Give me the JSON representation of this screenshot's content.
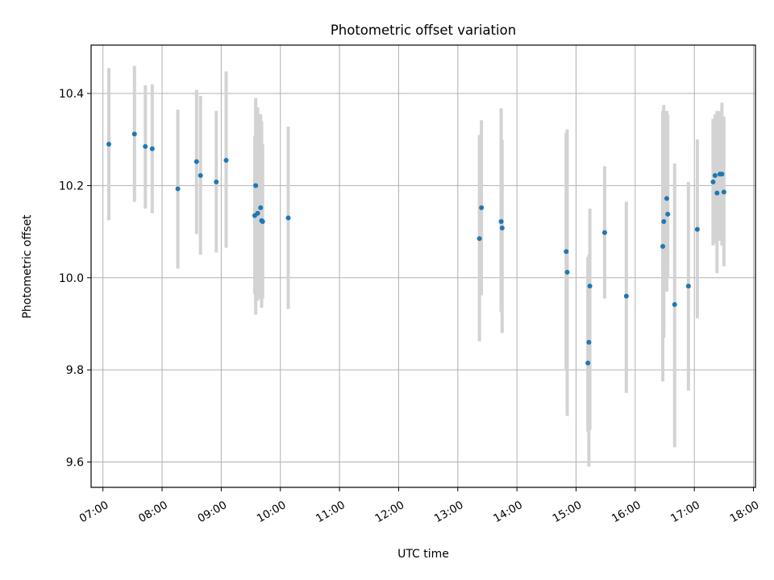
{
  "chart_data": {
    "type": "scatter",
    "title": "Photometric offset variation",
    "xlabel": "UTC time",
    "ylabel": "Photometric offset",
    "x_tick_labels": [
      "07:00",
      "08:00",
      "09:00",
      "10:00",
      "11:00",
      "12:00",
      "13:00",
      "14:00",
      "15:00",
      "16:00",
      "17:00",
      "18:00"
    ],
    "y_ticks": [
      9.6,
      9.8,
      10.0,
      10.2,
      10.4
    ],
    "y_tick_labels": [
      "9.6",
      "9.8",
      "10.0",
      "10.2",
      "10.4"
    ],
    "xlim": [
      "06:48",
      "18:02"
    ],
    "ylim": [
      9.545,
      10.505
    ],
    "grid": true,
    "colors": {
      "point": "#1f77b4",
      "errorbar": "#d3d3d3",
      "grid": "#b0b0b0"
    },
    "series": [
      {
        "x": [
          "07:06",
          "07:32",
          "07:43",
          "07:50",
          "08:16",
          "08:35",
          "08:39",
          "08:55",
          "09:05",
          "09:34",
          "09:35",
          "09:37",
          "09:40",
          "09:41",
          "09:42",
          "10:08",
          "13:22",
          "13:24",
          "13:44",
          "13:45",
          "14:50",
          "14:51",
          "15:12",
          "15:13",
          "15:14",
          "15:29",
          "15:51",
          "16:28",
          "16:29",
          "16:32",
          "16:33",
          "16:40",
          "16:54",
          "17:03",
          "17:19",
          "17:21",
          "17:23",
          "17:26",
          "17:28",
          "17:30"
        ],
        "y": [
          10.29,
          10.312,
          10.285,
          10.28,
          10.193,
          10.252,
          10.222,
          10.208,
          10.255,
          10.135,
          10.2,
          10.14,
          10.152,
          10.124,
          10.122,
          10.13,
          10.085,
          10.152,
          10.122,
          10.108,
          10.057,
          10.012,
          9.815,
          9.86,
          9.982,
          10.098,
          9.96,
          10.068,
          10.122,
          10.172,
          10.138,
          9.942,
          9.982,
          10.105,
          10.208,
          10.222,
          10.184,
          10.225,
          10.225,
          10.186
        ],
        "y_low": [
          10.125,
          10.165,
          10.15,
          10.14,
          10.02,
          10.095,
          10.05,
          10.055,
          10.065,
          9.965,
          9.92,
          9.95,
          9.955,
          9.935,
          9.955,
          9.932,
          9.862,
          9.962,
          9.925,
          9.88,
          9.8,
          9.7,
          9.665,
          9.59,
          9.67,
          9.955,
          9.75,
          9.775,
          9.87,
          9.97,
          10.0,
          9.632,
          9.755,
          9.912,
          10.07,
          10.075,
          10.01,
          10.08,
          10.07,
          10.025
        ],
        "y_high": [
          10.455,
          10.46,
          10.418,
          10.42,
          10.365,
          10.408,
          10.395,
          10.362,
          10.448,
          10.308,
          10.39,
          10.37,
          10.355,
          10.34,
          10.29,
          10.328,
          10.31,
          10.342,
          10.368,
          10.3,
          10.315,
          10.322,
          10.045,
          10.05,
          10.15,
          10.242,
          10.165,
          10.362,
          10.375,
          10.362,
          10.355,
          10.248,
          10.208,
          10.3,
          10.345,
          10.355,
          10.362,
          10.362,
          10.38,
          10.35
        ]
      }
    ]
  }
}
